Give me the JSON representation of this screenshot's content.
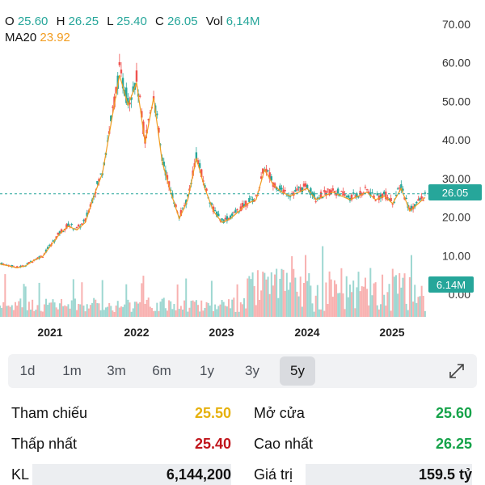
{
  "ohlc": {
    "o_label": "O",
    "o": "25.60",
    "h_label": "H",
    "h": "26.25",
    "l_label": "L",
    "l": "25.40",
    "c_label": "C",
    "c": "26.05",
    "vol_label": "Vol",
    "vol": "6,14M"
  },
  "ma": {
    "label": "MA20",
    "value": "23.92"
  },
  "chart_data": {
    "type": "line",
    "x_ticks": [
      "2021",
      "2022",
      "2023",
      "2024",
      "2025"
    ],
    "y_ticks": [
      "70.00",
      "60.00",
      "50.00",
      "40.00",
      "30.00",
      "20.00",
      "10.00",
      "0.00"
    ],
    "ylim": [
      0,
      70
    ],
    "last_price": "26.05",
    "last_volume": "6.14M",
    "colors": {
      "up": "#26a69a",
      "down": "#ef5350",
      "ma": "#f29c1f",
      "badge": "#26a69a"
    },
    "series": [
      {
        "values": [
          8,
          7.5,
          7,
          7.5,
          9,
          10,
          13,
          16,
          18,
          17,
          19,
          26,
          32,
          45,
          58,
          50,
          56,
          40,
          52,
          35,
          27,
          20,
          25,
          36,
          28,
          22,
          19,
          20,
          22,
          24,
          25,
          33,
          29,
          27,
          26,
          27,
          28,
          25,
          26,
          27,
          26,
          25,
          26,
          27,
          25,
          26,
          24,
          28,
          22,
          24,
          26
        ]
      }
    ]
  },
  "timeframes": [
    "1d",
    "1m",
    "3m",
    "6m",
    "1y",
    "3y",
    "5y"
  ],
  "active_timeframe": "5y",
  "stats": {
    "ref_label": "Tham chiếu",
    "ref_value": "25.50",
    "open_label": "Mở cửa",
    "open_value": "25.60",
    "low_label": "Thấp nhất",
    "low_value": "25.40",
    "high_label": "Cao nhất",
    "high_value": "26.25",
    "vol_label": "KL",
    "vol_value": "6,144,200",
    "val_label": "Giá trị",
    "val_value": "159.5 tỷ"
  }
}
